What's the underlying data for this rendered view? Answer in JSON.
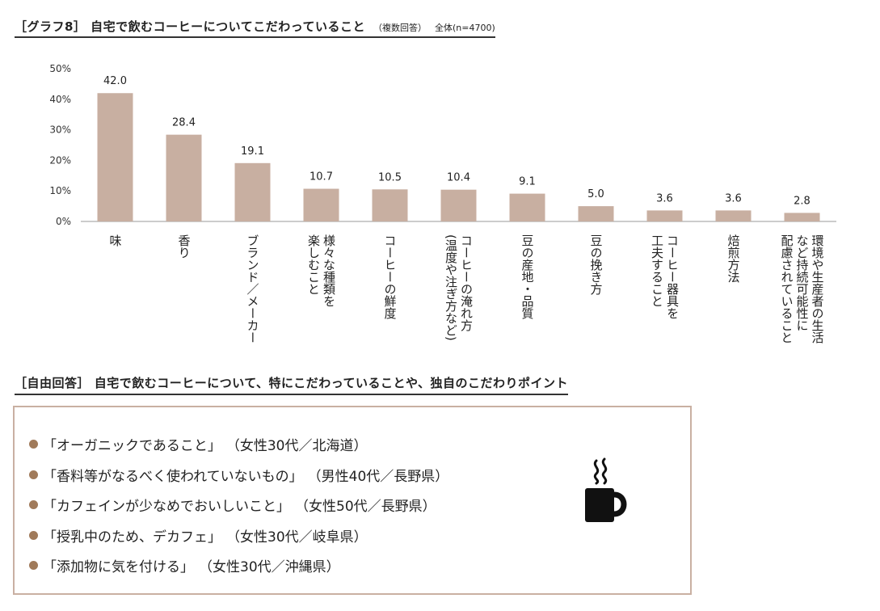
{
  "heading": {
    "title": "［グラフ8］ 自宅で飲むコーヒーについてこだわっていること",
    "note": "（複数回答）",
    "base": "全体(n=4700)"
  },
  "chart_data": {
    "type": "bar",
    "categories": [
      [
        "味"
      ],
      [
        "香り"
      ],
      [
        "ブランド／メーカー"
      ],
      [
        "様々な種類を",
        "楽しむこと"
      ],
      [
        "コーヒーの鮮度"
      ],
      [
        "コーヒーの淹れ方",
        "(温度や注ぎ方など)"
      ],
      [
        "豆の産地・品質"
      ],
      [
        "豆の挽き方"
      ],
      [
        "コーヒー器具を",
        "工夫すること"
      ],
      [
        "焙煎方法"
      ],
      [
        "環境や生産者の生活",
        "など持続可能性に",
        "配慮されていること"
      ]
    ],
    "values": [
      42.0,
      28.4,
      19.1,
      10.7,
      10.5,
      10.4,
      9.1,
      5.0,
      3.6,
      3.6,
      2.8
    ],
    "value_labels": [
      "42.0",
      "28.4",
      "19.1",
      "10.7",
      "10.5",
      "10.4",
      "9.1",
      "5.0",
      "3.6",
      "3.6",
      "2.8"
    ],
    "y_ticks": [
      0,
      10,
      20,
      30,
      40,
      50
    ],
    "y_tick_labels": [
      "0%",
      "10%",
      "20%",
      "30%",
      "40%",
      "50%"
    ],
    "ylim": [
      0,
      50
    ],
    "bar_color": "#c8afa1",
    "grid": false
  },
  "free_response": {
    "heading": "［自由回答］ 自宅で飲むコーヒーについて、特にこだわっていることや、独自のこだわりポイント",
    "items": [
      {
        "quote": "「オーガニックであること」",
        "who": "（女性30代／北海道）"
      },
      {
        "quote": "「香料等がなるべく使われていないもの」",
        "who": "（男性40代／長野県）"
      },
      {
        "quote": "「カフェインが少なめでおいしいこと」",
        "who": "（女性50代／長野県）"
      },
      {
        "quote": "「授乳中のため、デカフェ」",
        "who": "（女性30代／岐阜県）"
      },
      {
        "quote": "「添加物に気を付ける」",
        "who": "（女性30代／沖縄県）"
      }
    ],
    "bullet_color": "#a07a5a",
    "border_color": "#c9b0a2",
    "icon": "coffee-cup-icon"
  }
}
